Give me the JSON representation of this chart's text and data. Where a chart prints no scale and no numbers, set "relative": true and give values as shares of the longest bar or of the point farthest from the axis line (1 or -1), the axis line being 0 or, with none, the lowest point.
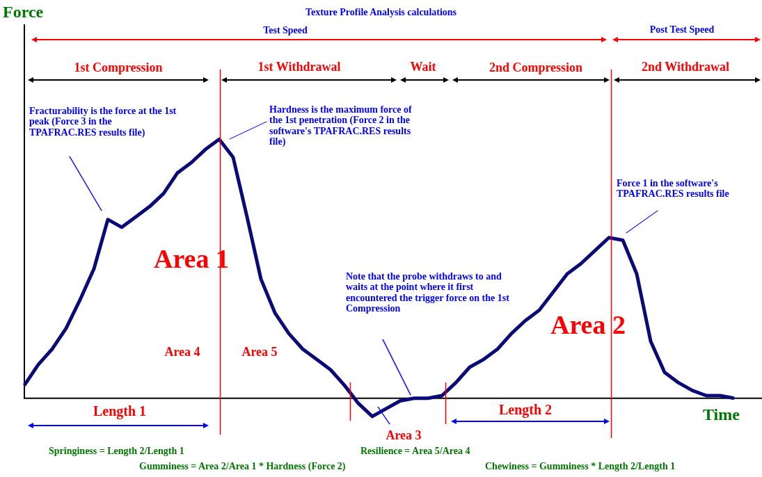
{
  "chart_data": {
    "type": "line",
    "title": "Texture Profile Analysis calculations",
    "xlabel": "Time",
    "relative": true,
    "marker": "none",
    "line_style": "solid",
    "legend": false,
    "categories": [
      null,
      null,
      null,
      null,
      null,
      null,
      null,
      null,
      null,
      null,
      null,
      null,
      null,
      null,
      null,
      null,
      null,
      null,
      null,
      null,
      null,
      null,
      null,
      null,
      null,
      null,
      null,
      null,
      null,
      null,
      null,
      null,
      null,
      null,
      null,
      null,
      null,
      null,
      null,
      null,
      null,
      null,
      null,
      null,
      null,
      null,
      null,
      null,
      null,
      null,
      null,
      null
    ],
    "series": [
      {
        "color": "#0b0b78",
        "values": [
          0.05,
          0.13,
          0.19,
          0.27,
          0.38,
          0.5,
          0.69,
          0.66,
          0.7,
          0.74,
          0.79,
          0.87,
          0.91,
          0.96,
          1,
          0.93,
          0.7,
          0.46,
          0.33,
          0.25,
          0.19,
          0.15,
          0.11,
          0.05,
          -0.02,
          -0.07,
          -0.04,
          -0.01,
          0,
          0,
          0.01,
          0.06,
          0.12,
          0.15,
          0.19,
          0.25,
          0.3,
          0.34,
          0.41,
          0.48,
          0.52,
          0.57,
          0.62,
          0.61,
          0.48,
          0.22,
          0.1,
          0.06,
          0.03,
          0.01,
          0.01,
          0
        ]
      }
    ],
    "annotations": [
      "Test Speed",
      "Post Test Speed",
      "1st Compression",
      "1st Withdrawal",
      "Wait",
      "2nd Compression",
      "2nd Withdrawal",
      "Fracturability is the force at the 1st peak (Force 3 in the TPAFRAC.RES results file)",
      "Hardness is the maximum force of the 1st penetration (Force 2 in the software's TPAFRAC.RES results file)",
      "Force 1 in the software's TPAFRAC.RES results file",
      "Area 1",
      "Area 2",
      "Area 3",
      "Area 4",
      "Area 5",
      "Note that the probe withdraws to and waits at the point where it first encountered the trigger force on the 1st Compression",
      "Length 1",
      "Length 2",
      "Springiness = Length 2/Length 1",
      "Resilience = Area 5/Area 4",
      "Gumminess = Area 2/Area 1 * Hardness (Force 2)",
      "Chewiness = Gumminess * Length 2/Length 1",
      "Force"
    ]
  }
}
